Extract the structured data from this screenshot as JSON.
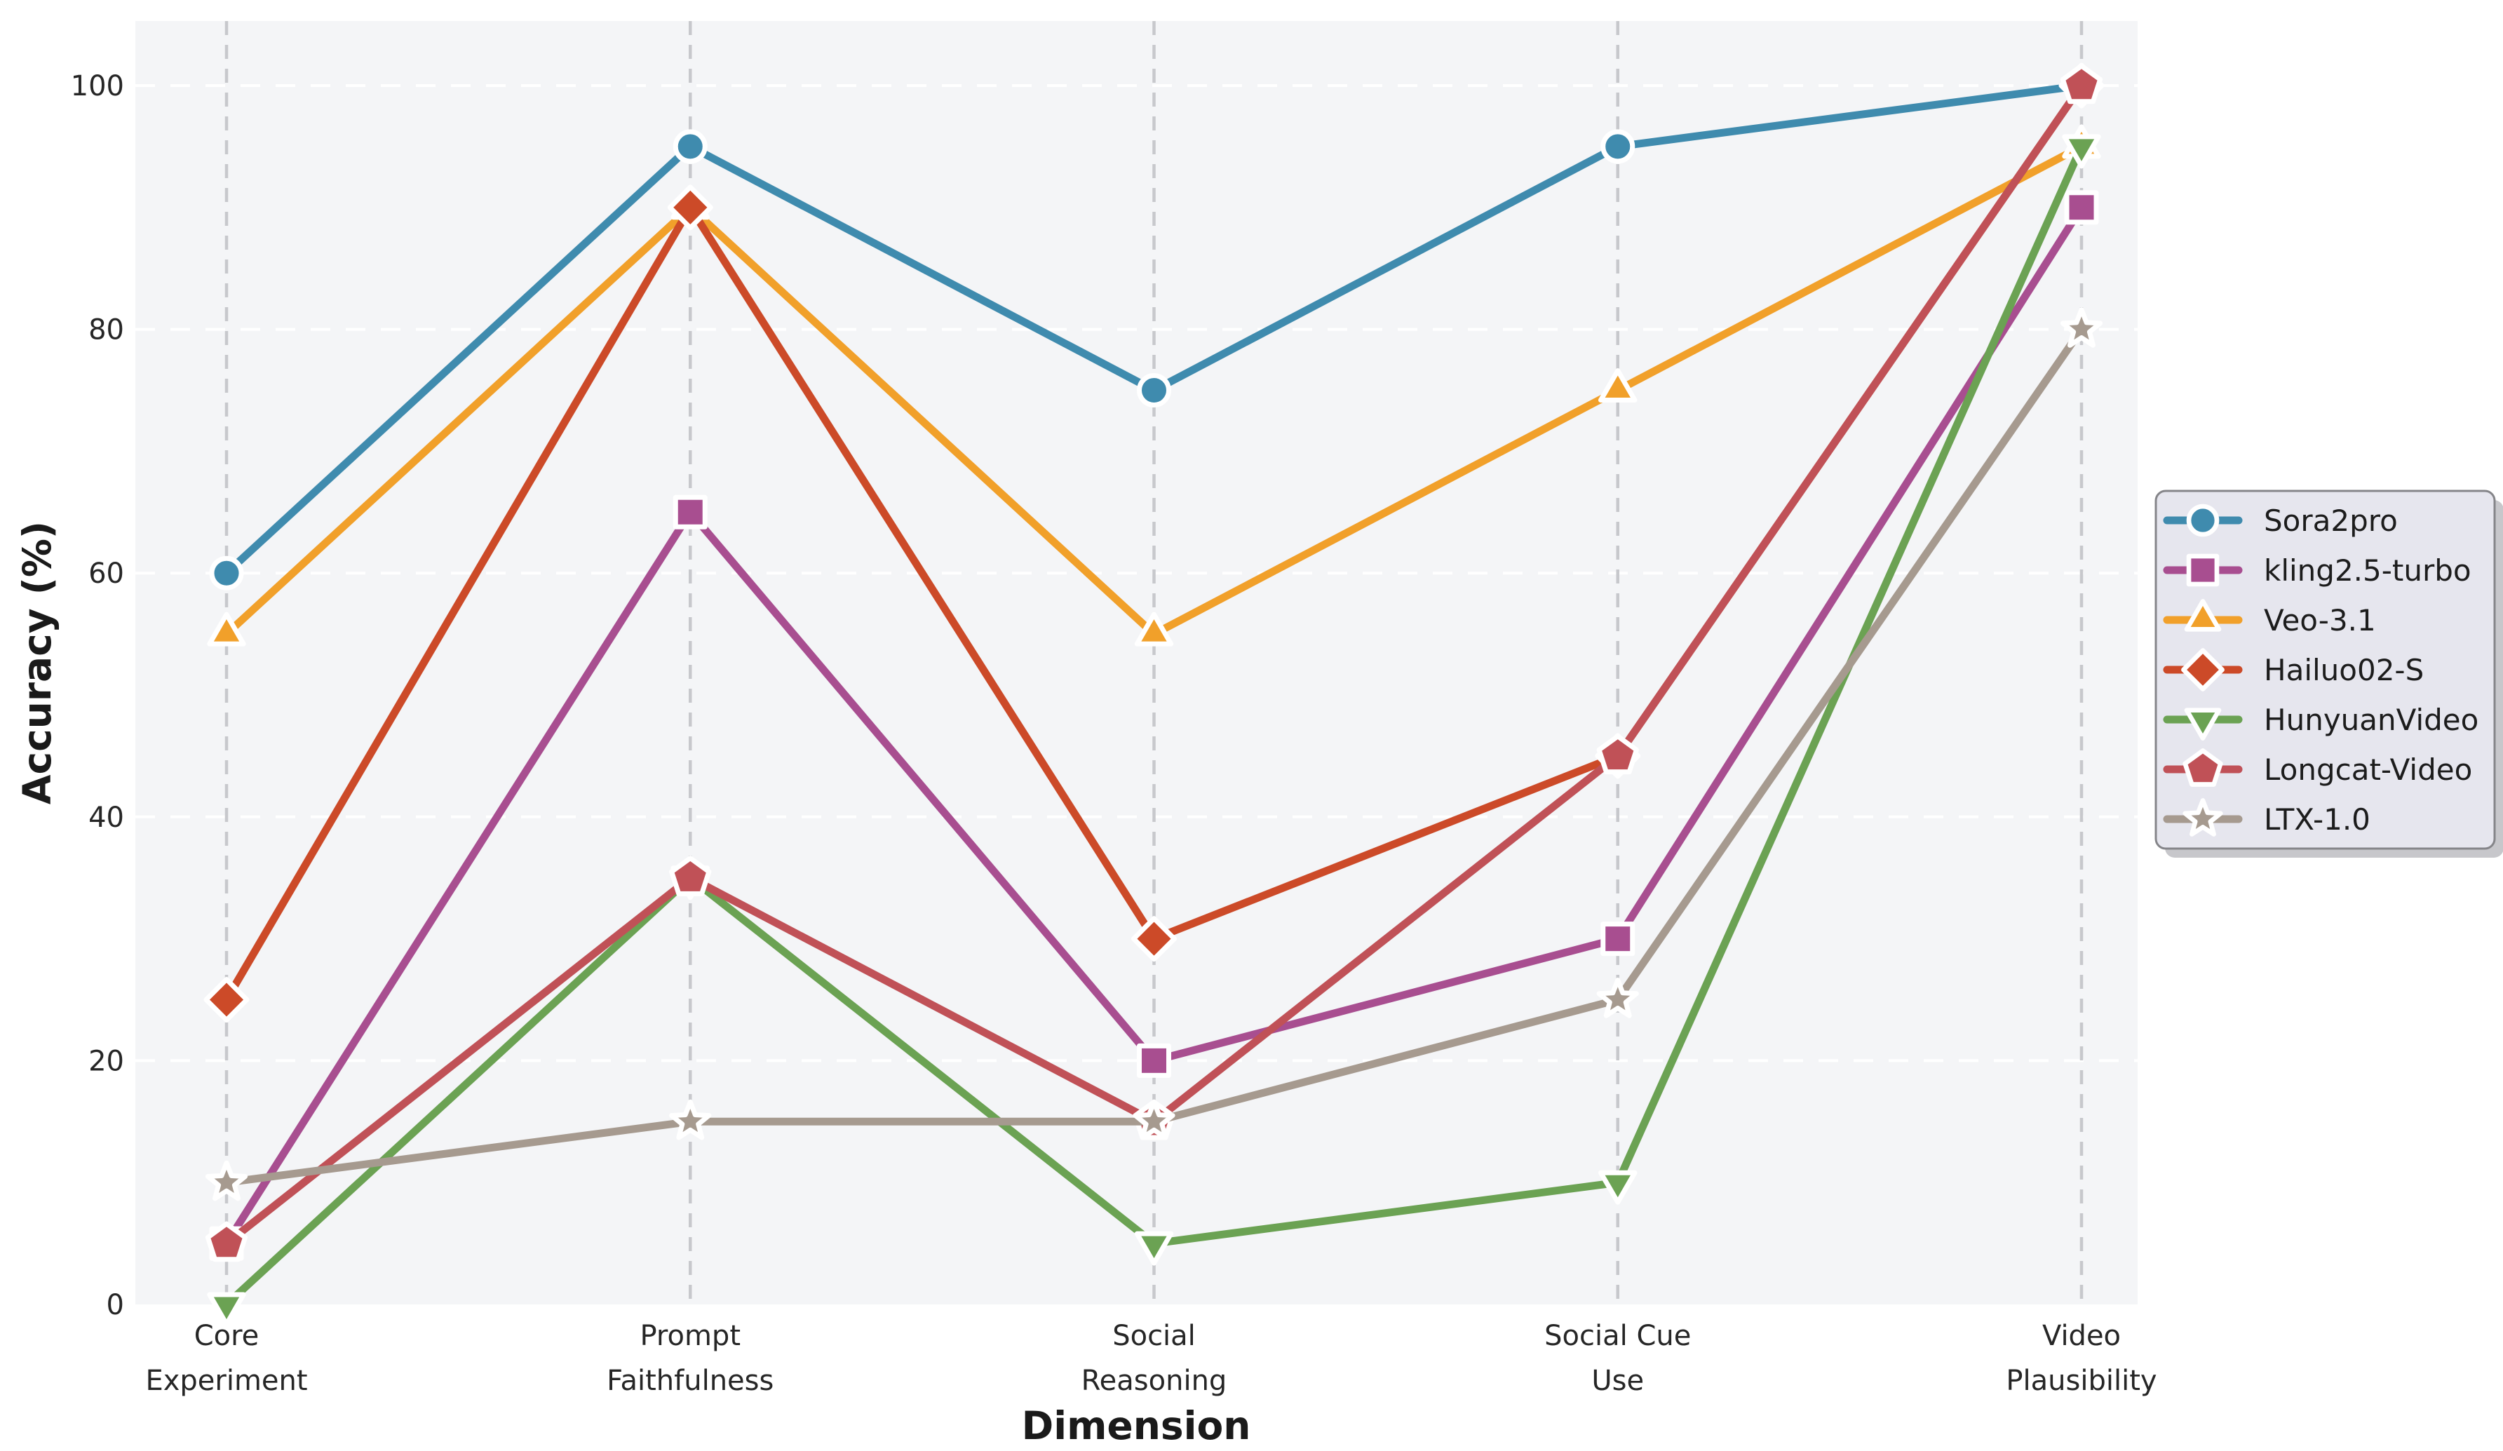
{
  "figure": {
    "page_background": "#ffffff",
    "plot_background": "#f4f5f7",
    "text_color": "#262626",
    "h_grid_color": "#ffffff",
    "v_grid_color": "#c7c8cc"
  },
  "chart_data": {
    "type": "line",
    "title": "",
    "xlabel": "Dimension",
    "ylabel": "Accuracy (%)",
    "ylim": [
      0,
      105
    ],
    "yticks": [
      0,
      20,
      40,
      60,
      80,
      100
    ],
    "grid": {
      "horizontal": "white dashed lines at each y tick",
      "vertical": "gray dashed guide at each category"
    },
    "legend_position": "outside-right-center",
    "categories": [
      "Core Experiment",
      "Prompt Faithfulness",
      "Social Reasoning",
      "Social Cue Use",
      "Video Plausibility"
    ],
    "category_label_lines": [
      [
        "Core",
        "Experiment"
      ],
      [
        "Prompt",
        "Faithfulness"
      ],
      [
        "Social",
        "Reasoning"
      ],
      [
        "Social Cue",
        "Use"
      ],
      [
        "Video",
        "Plausibility"
      ]
    ],
    "series": [
      {
        "name": "Sora2pro",
        "color": "#3f8bae",
        "marker": "circle",
        "values": [
          60,
          95,
          75,
          95,
          100
        ]
      },
      {
        "name": "kling2.5-turbo",
        "color": "#a84e90",
        "marker": "square",
        "values": [
          5,
          65,
          20,
          30,
          90
        ]
      },
      {
        "name": "Veo-3.1",
        "color": "#f1a02a",
        "marker": "triangle-up",
        "values": [
          55,
          90,
          55,
          75,
          95
        ]
      },
      {
        "name": "Hailuo02-S",
        "color": "#cc4a28",
        "marker": "diamond",
        "values": [
          25,
          90,
          30,
          45,
          100
        ]
      },
      {
        "name": "HunyuanVideo",
        "color": "#6ba253",
        "marker": "triangle-down",
        "values": [
          0,
          35,
          5,
          10,
          95
        ]
      },
      {
        "name": "Longcat-Video",
        "color": "#c05157",
        "marker": "pentagon",
        "values": [
          5,
          35,
          15,
          45,
          100
        ]
      },
      {
        "name": "LTX-1.0",
        "color": "#a69a8f",
        "marker": "star",
        "values": [
          10,
          15,
          15,
          25,
          80
        ]
      }
    ]
  },
  "legend": {
    "background": "#e6e6ee",
    "border_color": "#858589",
    "shadow_color": "#a2a2a8"
  }
}
